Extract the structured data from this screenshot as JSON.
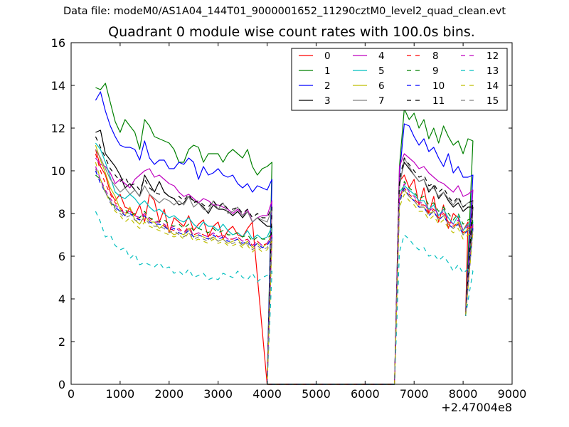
{
  "page": {
    "supertitle": "Data file: modeM0/AS1A04_144T01_9000001652_11290cztM0_level2_quad_clean.evt",
    "title": "Quadrant 0 module wise count rates with 100.0s bins."
  },
  "chart_data": {
    "type": "line",
    "title": "Quadrant 0 module wise count rates with 100.0s bins.",
    "xlabel": "",
    "ylabel": "",
    "x_offset_label": "+2.47004e8",
    "xlim": [
      0,
      9000
    ],
    "ylim": [
      0,
      16
    ],
    "xticks": [
      "0",
      "1000",
      "2000",
      "3000",
      "4000",
      "5000",
      "6000",
      "7000",
      "8000",
      "9000"
    ],
    "yticks": [
      "0",
      "2",
      "4",
      "6",
      "8",
      "10",
      "12",
      "14",
      "16"
    ],
    "grid": false,
    "legend_position": "top-right",
    "legend_columns": 4,
    "series": [
      {
        "name": "0",
        "color": "#ff0000",
        "dash": "solid",
        "seg1": [
          11.0,
          10.2,
          9.8,
          9.0,
          8.6,
          8.9,
          8.3,
          8.2,
          7.9,
          8.4,
          7.6,
          8.9,
          8.6,
          7.6,
          8.2,
          7.1,
          7.8,
          7.6,
          7.4,
          7.9,
          7.2,
          7.5,
          7.7,
          6.9,
          7.4,
          7.6,
          6.8,
          7.2,
          7.4,
          7.0,
          6.9,
          7.3,
          7.6
        ],
        "seg2": [
          9.5,
          9.8,
          9.2,
          9.6,
          8.4,
          9.2,
          8.0,
          8.8,
          7.6,
          8.4,
          7.3,
          8.0,
          7.8,
          7.2,
          7.6
        ]
      },
      {
        "name": "1",
        "color": "#008000",
        "dash": "solid",
        "seg1": [
          13.9,
          13.8,
          14.1,
          13.2,
          12.3,
          11.8,
          12.4,
          12.1,
          11.8,
          11.0,
          12.4,
          12.1,
          11.6,
          11.5,
          11.4,
          11.3,
          11.0,
          10.4,
          10.4,
          11.0,
          11.2,
          11.1,
          10.4,
          10.8,
          10.8,
          10.8,
          10.4,
          10.8,
          11.0,
          10.8,
          10.6,
          11.0,
          10.2,
          9.8,
          10.1,
          10.2,
          10.4
        ],
        "seg2": [
          10.2,
          12.9,
          12.4,
          12.7,
          12.0,
          12.4,
          11.5,
          12.0,
          11.3,
          12.1,
          11.6,
          11.2,
          11.4,
          10.8,
          11.5,
          11.4
        ]
      },
      {
        "name": "2",
        "color": "#0000ff",
        "dash": "solid",
        "seg1": [
          13.3,
          13.7,
          12.8,
          12.1,
          11.6,
          11.2,
          11.1,
          11.1,
          11.0,
          10.5,
          11.4,
          10.6,
          10.3,
          10.5,
          10.5,
          10.1,
          10.1,
          10.4,
          10.3,
          10.6,
          10.4,
          9.6,
          10.2,
          9.8,
          9.9,
          10.1,
          9.8,
          9.7,
          9.8,
          9.4,
          9.2,
          9.4,
          9.0,
          9.3,
          9.2,
          9.1,
          9.6
        ],
        "seg2": [
          9.8,
          12.2,
          12.1,
          11.6,
          11.2,
          11.5,
          10.9,
          11.1,
          10.6,
          10.2,
          10.8,
          9.9,
          10.2,
          9.7,
          9.7,
          9.8
        ]
      },
      {
        "name": "3",
        "color": "#000000",
        "dash": "solid",
        "seg1": [
          11.8,
          11.9,
          10.8,
          10.5,
          10.2,
          9.8,
          9.2,
          9.4,
          9.1,
          8.8,
          9.8,
          9.4,
          9.0,
          9.5,
          9.0,
          8.8,
          8.7,
          8.4,
          8.5,
          8.8,
          8.6,
          8.5,
          8.3,
          8.0,
          8.4,
          8.2,
          8.2,
          8.1,
          7.9,
          8.1,
          7.8,
          8.1,
          7.6,
          7.8,
          7.6,
          7.4,
          7.4
        ],
        "seg2": [
          9.4,
          10.4,
          10.1,
          9.8,
          9.5,
          9.6,
          9.0,
          9.3,
          8.7,
          9.0,
          8.6,
          8.3,
          8.5,
          8.1,
          8.3,
          8.3
        ]
      },
      {
        "name": "4",
        "color": "#bf00bf",
        "dash": "solid",
        "seg1": [
          10.6,
          10.3,
          10.2,
          9.9,
          9.4,
          9.6,
          9.4,
          9.2,
          9.6,
          9.8,
          10.0,
          10.1,
          9.7,
          9.8,
          9.6,
          9.4,
          9.3,
          9.0,
          8.8,
          8.9,
          8.7,
          8.5,
          8.7,
          8.6,
          8.4,
          8.4,
          8.3,
          8.2,
          8.0,
          8.2,
          7.9,
          8.2,
          7.6,
          7.8,
          7.9,
          7.9,
          8.6
        ],
        "seg2": [
          10.2,
          10.8,
          10.6,
          10.4,
          10.1,
          10.2,
          9.9,
          9.7,
          9.5,
          9.4,
          9.2,
          9.0,
          9.3,
          8.8,
          8.9,
          9.1
        ]
      },
      {
        "name": "5",
        "color": "#00bfbf",
        "dash": "solid",
        "seg1": [
          11.3,
          11.0,
          10.4,
          9.7,
          9.0,
          8.8,
          8.7,
          8.9,
          8.7,
          8.4,
          8.6,
          8.3,
          8.1,
          8.2,
          8.0,
          7.8,
          7.9,
          7.7,
          7.6,
          7.8,
          7.5,
          7.3,
          7.6,
          7.4,
          7.4,
          7.2,
          7.5,
          7.2,
          7.0,
          7.1,
          6.9,
          7.2,
          6.8,
          7.0,
          6.8,
          6.9,
          7.4
        ],
        "seg2": [
          9.0,
          9.3,
          9.1,
          8.9,
          8.6,
          8.6,
          8.2,
          8.4,
          7.9,
          8.2,
          7.8,
          7.5,
          7.9,
          7.2,
          7.5,
          7.6
        ]
      },
      {
        "name": "6",
        "color": "#bfbf00",
        "dash": "solid",
        "seg1": [
          11.2,
          10.5,
          9.9,
          9.2,
          8.8,
          8.2,
          7.9,
          8.3,
          7.7,
          7.5,
          7.9,
          7.6,
          7.6,
          7.3,
          7.5,
          7.2,
          7.0,
          7.1,
          7.0,
          7.3,
          6.9,
          7.0,
          6.9,
          6.8,
          6.9,
          6.7,
          6.8,
          6.6,
          6.7,
          6.8,
          6.5,
          6.7,
          6.4,
          6.6,
          6.4,
          6.6,
          7.0
        ],
        "seg2": [
          8.8,
          9.1,
          8.8,
          8.6,
          8.3,
          8.3,
          8.0,
          8.1,
          7.7,
          7.9,
          7.5,
          7.3,
          7.6,
          7.0,
          7.3,
          7.4
        ]
      },
      {
        "name": "7",
        "color": "#808080",
        "dash": "solid",
        "seg1": [
          11.0,
          10.6,
          10.1,
          9.6,
          9.3,
          9.0,
          9.2,
          8.9,
          9.1,
          8.8,
          9.3,
          8.9,
          8.7,
          8.5,
          8.7,
          8.6,
          8.4,
          8.6,
          8.4,
          8.8,
          8.3,
          8.5,
          8.2,
          8.1,
          8.6,
          8.2,
          8.5,
          8.0,
          8.1,
          8.3,
          7.9,
          8.1,
          7.6,
          7.8,
          7.7,
          7.6,
          8.2
        ],
        "seg2": [
          9.2,
          10.6,
          10.2,
          9.8,
          9.5,
          9.6,
          9.1,
          9.2,
          8.8,
          9.0,
          8.7,
          8.4,
          8.7,
          8.3,
          8.5,
          8.6
        ]
      },
      {
        "name": "8",
        "color": "#ff0000",
        "dash": "dashed",
        "seg1": [
          10.8,
          10.0,
          9.4,
          8.9,
          8.5,
          8.3,
          8.0,
          8.2,
          7.9,
          7.7,
          8.0,
          7.8,
          7.6,
          7.6,
          7.4,
          7.3,
          7.2,
          7.3,
          7.1,
          7.4,
          7.0,
          7.1,
          7.0,
          6.9,
          7.1,
          6.9,
          7.0,
          6.8,
          6.8,
          6.9,
          6.7,
          6.8,
          6.5,
          6.7,
          6.5,
          6.6,
          7.0
        ],
        "seg2": [
          8.8,
          9.2,
          8.9,
          8.7,
          8.4,
          8.4,
          8.0,
          8.2,
          7.8,
          8.0,
          7.6,
          7.4,
          7.6,
          7.1,
          7.3,
          7.4
        ]
      },
      {
        "name": "9",
        "color": "#008000",
        "dash": "dashed",
        "seg1": [
          9.8,
          9.6,
          9.0,
          8.6,
          8.3,
          8.1,
          8.2,
          7.9,
          8.0,
          7.8,
          8.1,
          7.8,
          7.7,
          7.6,
          7.7,
          7.5,
          7.4,
          7.5,
          7.3,
          7.5,
          7.2,
          7.3,
          7.2,
          7.1,
          7.3,
          7.1,
          7.2,
          7.0,
          7.0,
          7.1,
          6.9,
          7.0,
          6.7,
          6.9,
          6.8,
          6.8,
          7.1
        ],
        "seg2": [
          8.4,
          9.5,
          9.2,
          9.0,
          8.7,
          8.8,
          8.4,
          8.5,
          8.1,
          8.3,
          8.0,
          7.7,
          8.0,
          7.5,
          7.7,
          7.8
        ]
      },
      {
        "name": "10",
        "color": "#0000ff",
        "dash": "dashed",
        "seg1": [
          10.0,
          9.4,
          9.0,
          8.5,
          8.3,
          8.1,
          7.9,
          8.0,
          7.8,
          7.7,
          7.9,
          7.6,
          7.5,
          7.5,
          7.4,
          7.2,
          7.3,
          7.1,
          7.0,
          7.2,
          6.9,
          7.0,
          6.9,
          6.8,
          7.0,
          6.8,
          6.9,
          6.7,
          6.7,
          6.8,
          6.6,
          6.7,
          6.4,
          6.6,
          6.4,
          6.5,
          6.9
        ],
        "seg2": [
          8.6,
          9.2,
          8.8,
          8.6,
          8.3,
          8.3,
          7.9,
          8.1,
          7.7,
          7.9,
          7.5,
          7.3,
          7.5,
          7.0,
          7.2,
          7.3
        ]
      },
      {
        "name": "11",
        "color": "#000000",
        "dash": "dashed",
        "seg1": [
          11.6,
          11.1,
          10.6,
          10.1,
          9.8,
          9.5,
          9.7,
          9.3,
          9.4,
          9.1,
          9.6,
          9.2,
          9.0,
          8.9,
          9.0,
          8.8,
          8.7,
          8.8,
          8.6,
          8.9,
          8.5,
          8.6,
          8.4,
          8.3,
          8.6,
          8.3,
          8.5,
          8.2,
          8.2,
          8.3,
          8.0,
          8.2,
          7.8,
          8.0,
          7.8,
          7.8,
          8.3
        ],
        "seg2": [
          9.6,
          10.6,
          10.3,
          10.0,
          9.7,
          9.8,
          9.3,
          9.4,
          9.0,
          9.2,
          8.8,
          8.5,
          8.8,
          8.3,
          8.5,
          8.6
        ]
      },
      {
        "name": "12",
        "color": "#bf00bf",
        "dash": "dashed",
        "seg1": [
          10.2,
          9.6,
          9.1,
          8.7,
          8.4,
          8.2,
          8.0,
          8.1,
          7.9,
          7.8,
          8.0,
          7.7,
          7.6,
          7.6,
          7.5,
          7.3,
          7.4,
          7.2,
          7.1,
          7.3,
          7.0,
          7.1,
          7.0,
          6.9,
          7.1,
          6.9,
          7.0,
          6.8,
          6.8,
          6.9,
          6.7,
          6.8,
          6.5,
          6.7,
          6.5,
          6.6,
          7.0
        ],
        "seg2": [
          8.7,
          9.4,
          9.0,
          8.8,
          8.5,
          8.5,
          8.1,
          8.3,
          7.9,
          8.1,
          7.7,
          7.5,
          7.7,
          7.2,
          7.4,
          7.5
        ]
      },
      {
        "name": "13",
        "color": "#00bfbf",
        "dash": "dashed",
        "seg1": [
          8.1,
          7.6,
          6.9,
          7.0,
          6.5,
          6.3,
          6.4,
          5.9,
          6.1,
          5.6,
          5.7,
          5.6,
          5.5,
          5.7,
          5.4,
          5.5,
          5.2,
          5.3,
          5.1,
          5.4,
          5.0,
          5.1,
          5.2,
          4.9,
          5.0,
          4.9,
          5.2,
          5.1,
          5.0,
          5.3,
          5.0,
          4.9,
          5.2,
          4.8,
          5.0,
          5.1,
          5.3
        ],
        "seg2": [
          6.2,
          7.0,
          6.8,
          6.5,
          6.3,
          6.4,
          6.0,
          6.1,
          5.8,
          6.0,
          5.7,
          5.3,
          5.6,
          5.2,
          5.4,
          5.3
        ]
      },
      {
        "name": "14",
        "color": "#bfbf00",
        "dash": "dashed",
        "seg1": [
          10.4,
          9.6,
          9.0,
          8.5,
          8.1,
          7.9,
          7.6,
          7.8,
          7.5,
          7.3,
          7.6,
          7.4,
          7.3,
          7.2,
          7.1,
          7.0,
          6.9,
          7.0,
          6.8,
          7.1,
          6.7,
          6.8,
          6.7,
          6.6,
          6.8,
          6.6,
          6.7,
          6.5,
          6.5,
          6.6,
          6.4,
          6.5,
          6.2,
          6.4,
          6.2,
          6.3,
          6.7
        ],
        "seg2": [
          8.3,
          8.9,
          8.6,
          8.4,
          8.1,
          8.1,
          7.7,
          7.9,
          7.5,
          7.7,
          7.3,
          7.1,
          7.3,
          6.8,
          7.0,
          7.1
        ]
      },
      {
        "name": "15",
        "color": "#808080",
        "dash": "dashed",
        "seg1": [
          10.1,
          9.5,
          9.0,
          8.6,
          8.2,
          8.0,
          7.8,
          7.9,
          7.7,
          7.6,
          7.8,
          7.5,
          7.4,
          7.4,
          7.3,
          7.1,
          7.2,
          7.0,
          6.9,
          7.1,
          6.8,
          6.9,
          6.8,
          6.7,
          6.9,
          6.7,
          6.8,
          6.6,
          6.6,
          6.7,
          6.5,
          6.6,
          6.3,
          6.5,
          6.3,
          6.4,
          6.8
        ],
        "seg2": [
          8.5,
          9.1,
          8.8,
          8.6,
          8.3,
          8.3,
          7.9,
          8.1,
          7.7,
          7.9,
          7.5,
          7.3,
          7.5,
          7.0,
          7.2,
          7.3
        ]
      }
    ]
  }
}
